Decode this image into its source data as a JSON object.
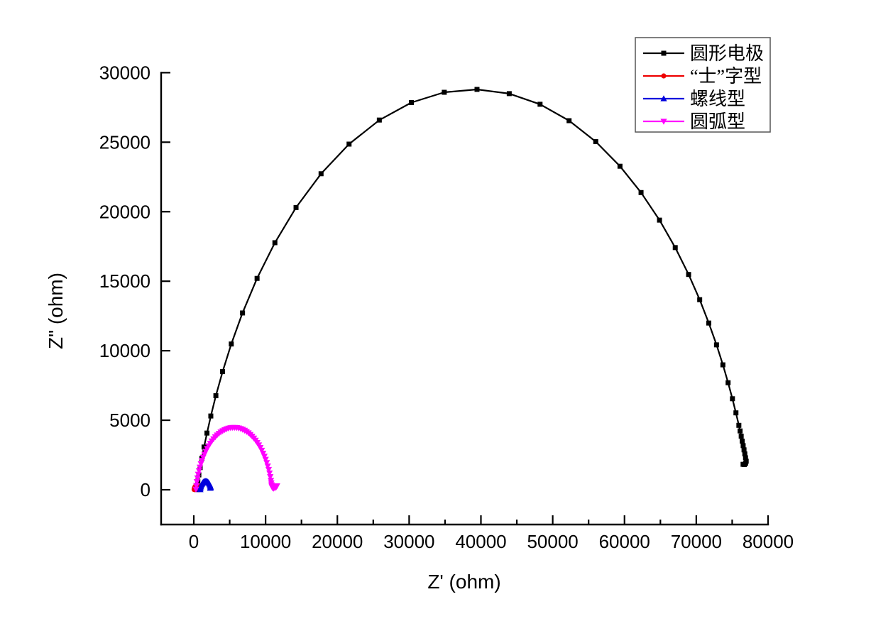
{
  "page": {
    "background": "#ffffff"
  },
  "chart_data": {
    "type": "line",
    "title": "",
    "xlabel": "Z' (ohm)",
    "ylabel": "Z\" (ohm)",
    "xlim": [
      0,
      80000
    ],
    "ylim": [
      0,
      30000
    ],
    "grid": false,
    "axis_color": "#000000",
    "x_major_ticks": [
      0,
      10000,
      20000,
      30000,
      40000,
      50000,
      60000,
      70000,
      80000
    ],
    "x_minor_ticks": [
      5000,
      15000,
      25000,
      35000,
      45000,
      55000,
      65000,
      75000
    ],
    "y_major_ticks": [
      0,
      5000,
      10000,
      15000,
      20000,
      25000,
      30000
    ],
    "x_tick_labels": [
      "0",
      "10000",
      "20000",
      "30000",
      "40000",
      "50000",
      "60000",
      "70000",
      "80000"
    ],
    "y_tick_labels": [
      "0",
      "5000",
      "10000",
      "15000",
      "20000",
      "25000",
      "30000"
    ],
    "legend": {
      "position": "top-right",
      "entries": [
        {
          "label": "圆形电极",
          "color": "#000000",
          "marker": "square"
        },
        {
          "label": "“士”字型",
          "color": "#ee0000",
          "marker": "circle"
        },
        {
          "label": "螺线型",
          "color": "#0000dd",
          "marker": "triangle-up"
        },
        {
          "label": "圆弧型",
          "color": "#ff00ff",
          "marker": "triangle-down"
        }
      ]
    },
    "series": [
      {
        "name": "圆形电极",
        "color": "#000000",
        "marker": "square",
        "line_width": 2.2,
        "points": [
          [
            380,
            14
          ],
          [
            461,
            285
          ],
          [
            562,
            618
          ],
          [
            705,
            1066
          ],
          [
            888,
            1594
          ],
          [
            1122,
            2259
          ],
          [
            1428,
            3073
          ],
          [
            1835,
            4076
          ],
          [
            2371,
            5305
          ],
          [
            3076,
            6764
          ],
          [
            4011,
            8497
          ],
          [
            5224,
            10484
          ],
          [
            6788,
            12716
          ],
          [
            8815,
            15203
          ],
          [
            11298,
            17770
          ],
          [
            14244,
            20301
          ],
          [
            17730,
            22731
          ],
          [
            21630,
            24863
          ],
          [
            25846,
            26592
          ],
          [
            30311,
            27853
          ],
          [
            34893,
            28590
          ],
          [
            39455,
            28797
          ],
          [
            43945,
            28494
          ],
          [
            48237,
            27728
          ],
          [
            52279,
            26547
          ],
          [
            55995,
            25040
          ],
          [
            59372,
            23271
          ],
          [
            62306,
            21377
          ],
          [
            64877,
            19394
          ],
          [
            67069,
            17419
          ],
          [
            68931,
            15485
          ],
          [
            70474,
            13671
          ],
          [
            71744,
            11991
          ],
          [
            72816,
            10423
          ],
          [
            73707,
            8984
          ],
          [
            74432,
            7699
          ],
          [
            75037,
            6546
          ],
          [
            75524,
            5531
          ],
          [
            75931,
            4632
          ],
          [
            76105,
            4230
          ],
          [
            76257,
            3858
          ],
          [
            76400,
            3500
          ],
          [
            76531,
            3173
          ],
          [
            76650,
            2870
          ],
          [
            76761,
            2581
          ],
          [
            76860,
            2300
          ],
          [
            76955,
            2053
          ],
          [
            76870,
            1900
          ],
          [
            76700,
            1810
          ],
          [
            76520,
            1830
          ]
        ]
      },
      {
        "name": "“士”字型",
        "color": "#ee0000",
        "marker": "circle",
        "line_width": 1.6,
        "points": [
          [
            51,
            12
          ],
          [
            79,
            100
          ],
          [
            129,
            178
          ],
          [
            197,
            240
          ],
          [
            279,
            283
          ],
          [
            369,
            303
          ],
          [
            461,
            299
          ],
          [
            550,
            271
          ],
          [
            628,
            221
          ],
          [
            690,
            153
          ],
          [
            733,
            71
          ],
          [
            749,
            11
          ]
        ]
      },
      {
        "name": "螺线型",
        "color": "#0000dd",
        "marker": "triangle-up",
        "line_width": 1.6,
        "points": [
          [
            902,
            9
          ],
          [
            931,
            112
          ],
          [
            975,
            209
          ],
          [
            1031,
            300
          ],
          [
            1100,
            381
          ],
          [
            1179,
            453
          ],
          [
            1268,
            512
          ],
          [
            1363,
            559
          ],
          [
            1465,
            592
          ],
          [
            1570,
            611
          ],
          [
            1677,
            614
          ],
          [
            1783,
            603
          ],
          [
            1886,
            578
          ],
          [
            1985,
            538
          ],
          [
            2078,
            484
          ],
          [
            2162,
            418
          ],
          [
            2236,
            342
          ],
          [
            2299,
            255
          ],
          [
            2332,
            197
          ],
          [
            2340,
            150
          ],
          [
            2295,
            115
          ]
        ]
      },
      {
        "name": "圆弧型",
        "color": "#ff00ff",
        "marker": "triangle-down",
        "line_width": 1.6,
        "points": [
          [
            306,
            33
          ],
          [
            362,
            309
          ],
          [
            432,
            582
          ],
          [
            517,
            850
          ],
          [
            615,
            1114
          ],
          [
            728,
            1372
          ],
          [
            853,
            1624
          ],
          [
            992,
            1869
          ],
          [
            1143,
            2106
          ],
          [
            1307,
            2335
          ],
          [
            1482,
            2556
          ],
          [
            1668,
            2766
          ],
          [
            1866,
            2967
          ],
          [
            2073,
            3157
          ],
          [
            2290,
            3336
          ],
          [
            2516,
            3504
          ],
          [
            2751,
            3659
          ],
          [
            2994,
            3802
          ],
          [
            3243,
            3932
          ],
          [
            3499,
            4048
          ],
          [
            3761,
            4152
          ],
          [
            4028,
            4241
          ],
          [
            4299,
            4316
          ],
          [
            4574,
            4377
          ],
          [
            4852,
            4423
          ],
          [
            5131,
            4455
          ],
          [
            5412,
            4472
          ],
          [
            5694,
            4474
          ],
          [
            5975,
            4463
          ],
          [
            6255,
            4436
          ],
          [
            6533,
            4394
          ],
          [
            6809,
            4338
          ],
          [
            7082,
            4268
          ],
          [
            7350,
            4183
          ],
          [
            7614,
            4084
          ],
          [
            7872,
            3972
          ],
          [
            8124,
            3847
          ],
          [
            8369,
            3708
          ],
          [
            8606,
            3557
          ],
          [
            8835,
            3393
          ],
          [
            9056,
            3218
          ],
          [
            9266,
            3032
          ],
          [
            9467,
            2834
          ],
          [
            9657,
            2627
          ],
          [
            9836,
            2410
          ],
          [
            10004,
            2183
          ],
          [
            10159,
            1949
          ],
          [
            10301,
            1706
          ],
          [
            10432,
            1457
          ],
          [
            10548,
            1201
          ],
          [
            10652,
            939
          ],
          [
            10741,
            672
          ],
          [
            10793,
            491
          ],
          [
            10828,
            355
          ],
          [
            10860,
            250
          ],
          [
            10950,
            150
          ],
          [
            11100,
            100
          ],
          [
            11300,
            130
          ],
          [
            11480,
            200
          ],
          [
            11600,
            280
          ]
        ]
      }
    ]
  }
}
